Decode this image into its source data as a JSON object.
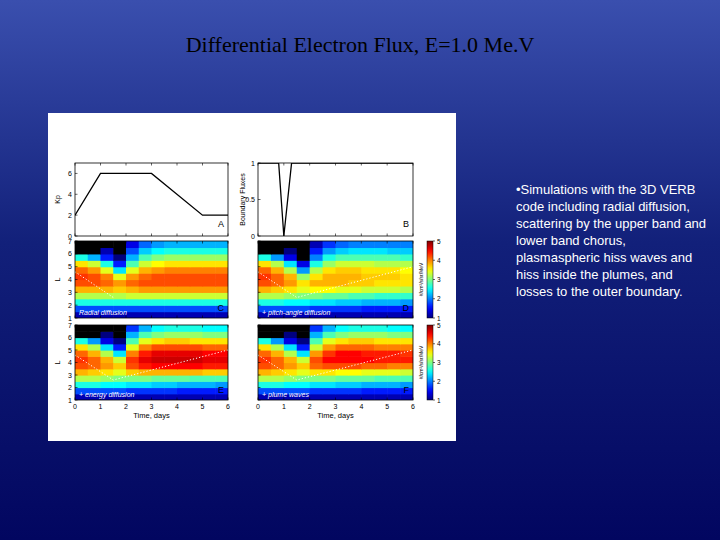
{
  "title": "Differential Electron Flux, E=1.0 Me.V",
  "bullet": "•Simulations with the 3D  VERB  code including radial diffusion, scattering by the upper band and lower band chorus, plasmaspheric hiss waves and hiss inside the plumes, and losses to the outer boundary.",
  "chart_data": [
    {
      "type": "line",
      "panel_label": "A",
      "ylabel": "Kp",
      "x": [
        0,
        1,
        3,
        5,
        6
      ],
      "values": [
        2,
        6,
        6,
        2,
        2
      ],
      "color": "#000000",
      "xlim": [
        0,
        6
      ],
      "ylim": [
        0,
        7
      ],
      "xticks": [
        0,
        1,
        2,
        3,
        4,
        5,
        6
      ],
      "yticks": [
        0,
        2,
        4,
        6
      ],
      "tick_labels": "y"
    },
    {
      "type": "line",
      "panel_label": "B",
      "ylabel": "Boundary Fluxes",
      "x": [
        0,
        0.8,
        1,
        1.3,
        6
      ],
      "values": [
        1,
        1,
        0,
        1,
        1
      ],
      "color": "#000000",
      "xlim": [
        0,
        6
      ],
      "ylim": [
        0,
        1
      ],
      "xticks": [
        0,
        1,
        2,
        3,
        4,
        5,
        6
      ],
      "yticks": [
        0,
        0.5,
        1
      ],
      "tick_labels": "y"
    },
    {
      "type": "heatmap",
      "panel_label": "C",
      "annotation": "Radial diffusion",
      "ylabel": "L",
      "xlim": [
        0,
        6
      ],
      "ylim": [
        1,
        7
      ],
      "xticks": [
        0,
        1,
        2,
        3,
        4,
        5,
        6
      ],
      "yticks": [
        1,
        2,
        3,
        4,
        5,
        6,
        7
      ],
      "tick_labels": "y",
      "x_edges": [
        0,
        0.5,
        1,
        1.5,
        2,
        2.5,
        3,
        3.5,
        4,
        4.5,
        5,
        5.5,
        6
      ],
      "y_edges": [
        1,
        1.5,
        2,
        2.5,
        3,
        3.5,
        4,
        4.5,
        5,
        5.5,
        6,
        6.5,
        7
      ],
      "plasmapause": {
        "x": [
          0,
          1.5
        ],
        "y": [
          4.6,
          2.6
        ]
      },
      "cells": [
        [
          1.2,
          1.2,
          1.2,
          1.2,
          1.2,
          1.2,
          1.2,
          1.2,
          1.2,
          1.2,
          1.2,
          1.2
        ],
        [
          1.8,
          1.8,
          1.8,
          1.8,
          1.8,
          1.8,
          1.8,
          1.8,
          1.8,
          1.8,
          1.8,
          1.8
        ],
        [
          2.6,
          2.6,
          2.6,
          2.6,
          2.6,
          2.6,
          2.6,
          2.6,
          2.6,
          2.6,
          2.6,
          2.6
        ],
        [
          3.2,
          3.2,
          3.2,
          3.2,
          3.3,
          3.3,
          3.3,
          3.3,
          3.3,
          3.3,
          3.3,
          3.3
        ],
        [
          3.8,
          3.8,
          3.8,
          3.7,
          3.8,
          3.9,
          3.9,
          3.9,
          3.9,
          3.9,
          3.9,
          3.9
        ],
        [
          4.2,
          4.2,
          4.1,
          3.9,
          4.1,
          4.2,
          4.2,
          4.2,
          4.2,
          4.2,
          4.2,
          4.2
        ],
        [
          4.3,
          4.2,
          4.0,
          3.4,
          3.9,
          4.1,
          4.2,
          4.2,
          4.2,
          4.2,
          4.2,
          4.2
        ],
        [
          4.1,
          3.9,
          3.4,
          2.4,
          3.4,
          3.8,
          3.9,
          4.0,
          4.0,
          4.0,
          4.0,
          4.0
        ],
        [
          3.6,
          3.3,
          2.6,
          1.6,
          2.8,
          3.3,
          3.5,
          3.6,
          3.6,
          3.6,
          3.6,
          3.6
        ],
        [
          2.6,
          2.2,
          1.6,
          1.0,
          2.2,
          2.8,
          3.0,
          3.1,
          3.1,
          3.1,
          3.1,
          3.1
        ],
        [
          0.5,
          0.5,
          1.2,
          0.8,
          1.8,
          2.3,
          2.5,
          2.6,
          2.6,
          2.6,
          2.6,
          2.6
        ],
        [
          0.5,
          0.5,
          0.8,
          0.6,
          1.4,
          1.9,
          2.1,
          2.2,
          2.2,
          2.2,
          2.2,
          2.2
        ]
      ]
    },
    {
      "type": "heatmap",
      "panel_label": "D",
      "annotation": "+ pitch-angle diffusion",
      "xlim": [
        0,
        6
      ],
      "ylim": [
        1,
        7
      ],
      "xticks": [
        0,
        1,
        2,
        3,
        4,
        5,
        6
      ],
      "yticks": [
        1,
        2,
        3,
        4,
        5,
        6,
        7
      ],
      "tick_labels": false,
      "x_edges": [
        0,
        0.5,
        1,
        1.5,
        2,
        2.5,
        3,
        3.5,
        4,
        4.5,
        5,
        5.5,
        6
      ],
      "y_edges": [
        1,
        1.5,
        2,
        2.5,
        3,
        3.5,
        4,
        4.5,
        5,
        5.5,
        6,
        6.5,
        7
      ],
      "plasmapause": {
        "x": [
          0,
          1.5,
          6
        ],
        "y": [
          4.6,
          2.6,
          5.0
        ]
      },
      "colorbar": {
        "range": [
          1,
          5
        ],
        "ticks": [
          1,
          2,
          3,
          4,
          5
        ],
        "label": "#/cm²/s/sr/MeV"
      },
      "cells": [
        [
          1.2,
          1.2,
          1.2,
          1.2,
          1.2,
          1.2,
          1.2,
          1.2,
          1.2,
          1.2,
          1.2,
          1.2
        ],
        [
          1.8,
          1.8,
          1.8,
          1.8,
          1.7,
          1.7,
          1.7,
          1.7,
          1.6,
          1.6,
          1.6,
          1.6
        ],
        [
          2.6,
          2.6,
          2.5,
          2.5,
          2.4,
          2.4,
          2.3,
          2.3,
          2.2,
          2.2,
          2.2,
          2.1
        ],
        [
          3.2,
          3.2,
          3.1,
          3.0,
          3.0,
          2.9,
          2.9,
          2.8,
          2.8,
          2.7,
          2.7,
          2.7
        ],
        [
          3.8,
          3.7,
          3.6,
          3.4,
          3.5,
          3.5,
          3.4,
          3.4,
          3.3,
          3.3,
          3.3,
          3.2
        ],
        [
          4.2,
          4.1,
          3.9,
          3.6,
          3.8,
          3.8,
          3.8,
          3.7,
          3.7,
          3.6,
          3.6,
          3.6
        ],
        [
          4.3,
          4.1,
          3.8,
          3.1,
          3.6,
          3.8,
          3.8,
          3.8,
          3.7,
          3.7,
          3.7,
          3.6
        ],
        [
          4.1,
          3.8,
          3.2,
          2.1,
          3.2,
          3.6,
          3.7,
          3.7,
          3.6,
          3.6,
          3.6,
          3.5
        ],
        [
          3.6,
          3.2,
          2.4,
          1.4,
          2.6,
          3.1,
          3.3,
          3.3,
          3.3,
          3.2,
          3.2,
          3.2
        ],
        [
          2.6,
          2.1,
          1.4,
          0.9,
          2.0,
          2.6,
          2.8,
          2.8,
          2.8,
          2.8,
          2.8,
          2.7
        ],
        [
          0.5,
          0.5,
          1.0,
          0.7,
          1.6,
          2.1,
          2.3,
          2.4,
          2.4,
          2.4,
          2.3,
          2.3
        ],
        [
          0.5,
          0.5,
          0.7,
          0.5,
          1.2,
          1.7,
          1.9,
          2.0,
          2.0,
          2.0,
          2.0,
          2.0
        ]
      ]
    },
    {
      "type": "heatmap",
      "panel_label": "E",
      "annotation": "+ energy diffusion",
      "ylabel": "L",
      "xlabel": "Time, days",
      "xlim": [
        0,
        6
      ],
      "ylim": [
        1,
        7
      ],
      "xticks": [
        0,
        1,
        2,
        3,
        4,
        5,
        6
      ],
      "yticks": [
        1,
        2,
        3,
        4,
        5,
        6,
        7
      ],
      "tick_labels": true,
      "x_edges": [
        0,
        0.5,
        1,
        1.5,
        2,
        2.5,
        3,
        3.5,
        4,
        4.5,
        5,
        5.5,
        6
      ],
      "y_edges": [
        1,
        1.5,
        2,
        2.5,
        3,
        3.5,
        4,
        4.5,
        5,
        5.5,
        6,
        6.5,
        7
      ],
      "plasmapause": {
        "x": [
          0,
          1.5,
          6
        ],
        "y": [
          4.6,
          2.6,
          5.0
        ]
      },
      "cells": [
        [
          1.2,
          1.2,
          1.2,
          1.2,
          1.2,
          1.2,
          1.2,
          1.2,
          1.2,
          1.2,
          1.2,
          1.2
        ],
        [
          1.8,
          1.8,
          1.8,
          1.8,
          1.7,
          1.7,
          1.7,
          1.7,
          1.6,
          1.6,
          1.6,
          1.6
        ],
        [
          2.6,
          2.6,
          2.5,
          2.5,
          2.4,
          2.4,
          2.3,
          2.3,
          2.2,
          2.2,
          2.2,
          2.1
        ],
        [
          3.2,
          3.2,
          3.1,
          3.0,
          3.0,
          3.0,
          2.9,
          2.9,
          2.9,
          2.8,
          2.8,
          2.8
        ],
        [
          3.8,
          3.7,
          3.6,
          3.4,
          3.7,
          3.8,
          3.8,
          3.8,
          3.8,
          3.8,
          3.7,
          3.7
        ],
        [
          4.2,
          4.1,
          3.9,
          3.7,
          4.2,
          4.4,
          4.5,
          4.5,
          4.5,
          4.5,
          4.4,
          4.4
        ],
        [
          4.3,
          4.1,
          3.8,
          3.3,
          4.3,
          4.6,
          4.7,
          4.7,
          4.7,
          4.7,
          4.6,
          4.6
        ],
        [
          4.1,
          3.8,
          3.2,
          2.4,
          4.0,
          4.4,
          4.6,
          4.6,
          4.6,
          4.6,
          4.5,
          4.5
        ],
        [
          3.6,
          3.2,
          2.4,
          1.6,
          3.4,
          4.0,
          4.2,
          4.2,
          4.2,
          4.2,
          4.1,
          4.1
        ],
        [
          2.6,
          2.1,
          1.4,
          1.0,
          2.8,
          3.4,
          3.6,
          3.7,
          3.7,
          3.6,
          3.6,
          3.6
        ],
        [
          0.5,
          0.5,
          1.0,
          0.8,
          2.2,
          2.8,
          3.0,
          3.1,
          3.1,
          3.1,
          3.0,
          3.0
        ],
        [
          0.5,
          0.5,
          0.7,
          0.6,
          1.7,
          2.2,
          2.5,
          2.6,
          2.6,
          2.6,
          2.5,
          2.5
        ]
      ]
    },
    {
      "type": "heatmap",
      "panel_label": "F",
      "annotation": "+ plume waves",
      "xlabel": "Time, days",
      "xlim": [
        0,
        6
      ],
      "ylim": [
        1,
        7
      ],
      "xticks": [
        0,
        1,
        2,
        3,
        4,
        5,
        6
      ],
      "yticks": [
        1,
        2,
        3,
        4,
        5,
        6,
        7
      ],
      "tick_labels": "x",
      "x_edges": [
        0,
        0.5,
        1,
        1.5,
        2,
        2.5,
        3,
        3.5,
        4,
        4.5,
        5,
        5.5,
        6
      ],
      "y_edges": [
        1,
        1.5,
        2,
        2.5,
        3,
        3.5,
        4,
        4.5,
        5,
        5.5,
        6,
        6.5,
        7
      ],
      "plasmapause": {
        "x": [
          0,
          1.5,
          6
        ],
        "y": [
          4.6,
          2.6,
          5.0
        ]
      },
      "colorbar": {
        "range": [
          1,
          5
        ],
        "ticks": [
          1,
          2,
          3,
          4,
          5
        ],
        "label": "#/cm²/s/sr/MeV"
      },
      "cells": [
        [
          1.2,
          1.2,
          1.2,
          1.2,
          1.2,
          1.2,
          1.2,
          1.2,
          1.2,
          1.2,
          1.2,
          1.2
        ],
        [
          1.8,
          1.8,
          1.8,
          1.8,
          1.7,
          1.7,
          1.7,
          1.7,
          1.6,
          1.6,
          1.6,
          1.6
        ],
        [
          2.6,
          2.6,
          2.5,
          2.5,
          2.4,
          2.4,
          2.3,
          2.3,
          2.2,
          2.2,
          2.2,
          2.1
        ],
        [
          3.2,
          3.2,
          3.1,
          3.0,
          3.0,
          3.0,
          2.9,
          2.9,
          2.9,
          2.8,
          2.8,
          2.8
        ],
        [
          3.8,
          3.7,
          3.6,
          3.4,
          3.6,
          3.6,
          3.5,
          3.5,
          3.4,
          3.4,
          3.4,
          3.3
        ],
        [
          4.2,
          4.1,
          3.9,
          3.7,
          4.1,
          4.2,
          4.2,
          4.2,
          4.1,
          4.1,
          4.0,
          4.0
        ],
        [
          4.3,
          4.1,
          3.8,
          3.3,
          4.2,
          4.5,
          4.5,
          4.5,
          4.5,
          4.4,
          4.4,
          4.4
        ],
        [
          4.1,
          3.8,
          3.2,
          2.4,
          3.9,
          4.3,
          4.5,
          4.5,
          4.4,
          4.4,
          4.4,
          4.3
        ],
        [
          3.6,
          3.2,
          2.4,
          1.6,
          3.3,
          3.9,
          4.1,
          4.1,
          4.1,
          4.0,
          4.0,
          4.0
        ],
        [
          2.6,
          2.1,
          1.4,
          1.0,
          2.8,
          3.4,
          3.6,
          3.7,
          3.7,
          3.6,
          3.6,
          3.6
        ],
        [
          0.5,
          0.5,
          1.0,
          0.8,
          2.2,
          2.8,
          3.0,
          3.1,
          3.1,
          3.1,
          3.0,
          3.0
        ],
        [
          0.5,
          0.5,
          0.7,
          0.6,
          1.7,
          2.2,
          2.5,
          2.6,
          2.6,
          2.6,
          2.5,
          2.5
        ]
      ]
    }
  ]
}
